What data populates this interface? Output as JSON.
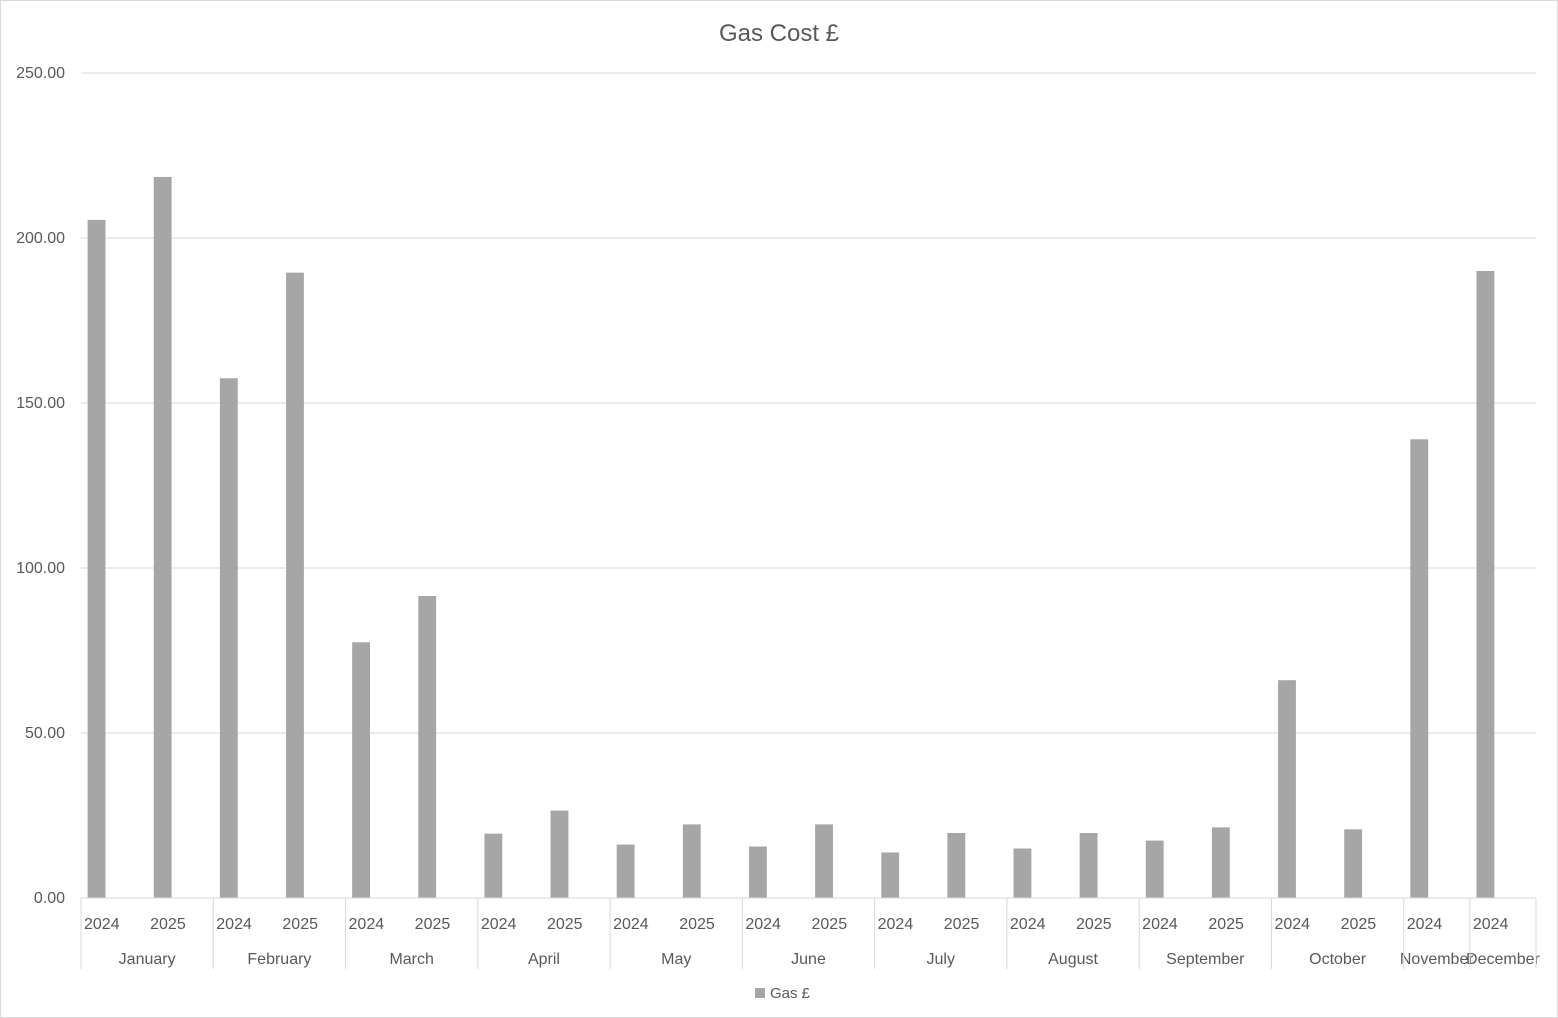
{
  "chart_data": {
    "type": "bar",
    "title": "Gas Cost £",
    "xlabel": "",
    "ylabel": "",
    "ylim": [
      0,
      250
    ],
    "yticks": [
      "0.00",
      "50.00",
      "100.00",
      "150.00",
      "200.00",
      "250.00"
    ],
    "grid": true,
    "legend_position": "bottom",
    "series": [
      {
        "name": "Gas £",
        "color": "#a6a6a6"
      }
    ],
    "groups": [
      {
        "month": "January",
        "bars": [
          {
            "year": "2024",
            "value": 205.5
          },
          {
            "year": "2025",
            "value": 218.5
          }
        ]
      },
      {
        "month": "February",
        "bars": [
          {
            "year": "2024",
            "value": 157.5
          },
          {
            "year": "2025",
            "value": 189.5
          }
        ]
      },
      {
        "month": "March",
        "bars": [
          {
            "year": "2024",
            "value": 77.5
          },
          {
            "year": "2025",
            "value": 91.5
          }
        ]
      },
      {
        "month": "April",
        "bars": [
          {
            "year": "2024",
            "value": 19.5
          },
          {
            "year": "2025",
            "value": 26.5
          }
        ]
      },
      {
        "month": "May",
        "bars": [
          {
            "year": "2024",
            "value": 16.2
          },
          {
            "year": "2025",
            "value": 22.3
          }
        ]
      },
      {
        "month": "June",
        "bars": [
          {
            "year": "2024",
            "value": 15.6
          },
          {
            "year": "2025",
            "value": 22.3
          }
        ]
      },
      {
        "month": "July",
        "bars": [
          {
            "year": "2024",
            "value": 13.8
          },
          {
            "year": "2025",
            "value": 19.7
          }
        ]
      },
      {
        "month": "August",
        "bars": [
          {
            "year": "2024",
            "value": 15.0
          },
          {
            "year": "2025",
            "value": 19.7
          }
        ]
      },
      {
        "month": "September",
        "bars": [
          {
            "year": "2024",
            "value": 17.4
          },
          {
            "year": "2025",
            "value": 21.4
          }
        ]
      },
      {
        "month": "October",
        "bars": [
          {
            "year": "2024",
            "value": 66.0
          },
          {
            "year": "2025",
            "value": 20.8
          }
        ]
      },
      {
        "month": "November",
        "bars": [
          {
            "year": "2024",
            "value": 139.0
          }
        ]
      },
      {
        "month": "December",
        "bars": [
          {
            "year": "2024",
            "value": 190.0
          }
        ]
      }
    ]
  }
}
